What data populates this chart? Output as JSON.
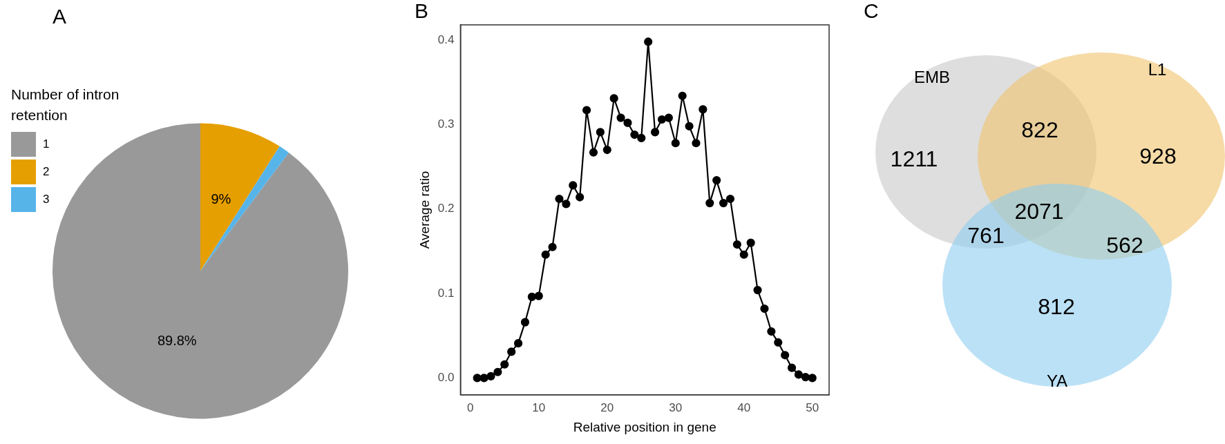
{
  "chart_data": [
    {
      "type": "pie",
      "title": "A",
      "legend_title": "Number of intron retention",
      "legend": "left",
      "categories": [
        "1",
        "2",
        "3"
      ],
      "values": [
        89.8,
        9,
        1.2
      ],
      "colors": [
        "#999999",
        "#e69f00",
        "#56b4e9"
      ],
      "value_labels": [
        "89.8%",
        "9%",
        null
      ]
    },
    {
      "type": "line",
      "title": "B",
      "xlabel": "Relative position in gene",
      "ylabel": "Average ratio",
      "x": [
        1,
        2,
        3,
        4,
        5,
        6,
        7,
        8,
        9,
        10,
        11,
        12,
        13,
        14,
        15,
        16,
        17,
        18,
        19,
        20,
        21,
        22,
        23,
        24,
        25,
        26,
        27,
        28,
        29,
        30,
        31,
        32,
        33,
        34,
        35,
        36,
        37,
        38,
        39,
        40,
        41,
        42,
        43,
        44,
        45,
        46,
        47,
        48,
        49,
        50
      ],
      "series": [
        {
          "color": "#000000",
          "values": [
            0,
            0,
            0.002,
            0.007,
            0.016,
            0.031,
            0.041,
            0.066,
            0.096,
            0.097,
            0.146,
            0.155,
            0.212,
            0.206,
            0.228,
            0.214,
            0.317,
            0.267,
            0.291,
            0.27,
            0.331,
            0.308,
            0.302,
            0.288,
            0.284,
            0.398,
            0.291,
            0.306,
            0.308,
            0.278,
            0.334,
            0.298,
            0.278,
            0.318,
            0.207,
            0.234,
            0.207,
            0.212,
            0.158,
            0.146,
            0.16,
            0.104,
            0.082,
            0.055,
            0.042,
            0.027,
            0.012,
            0.004,
            0.001,
            0
          ]
        }
      ],
      "xlim": [
        -1.45,
        52.45
      ],
      "ylim": [
        -0.02,
        0.418
      ],
      "xticks": [
        0,
        10,
        20,
        30,
        40,
        50
      ],
      "yticks": [
        {
          "value": 0,
          "label": "0.0"
        },
        0.1,
        0.2,
        0.3,
        0.4
      ],
      "grid": false,
      "marker": "circle",
      "line_style": "solid"
    },
    {
      "type": "other",
      "title": "C",
      "categories": [
        "EMB",
        "L1",
        "YA"
      ],
      "colors": [
        "#c8c8c8",
        "#f0c36d",
        "#8ecdf0"
      ],
      "annotations": [
        "1211",
        "822",
        "928",
        "2071",
        "761",
        "562",
        "812"
      ]
    }
  ]
}
